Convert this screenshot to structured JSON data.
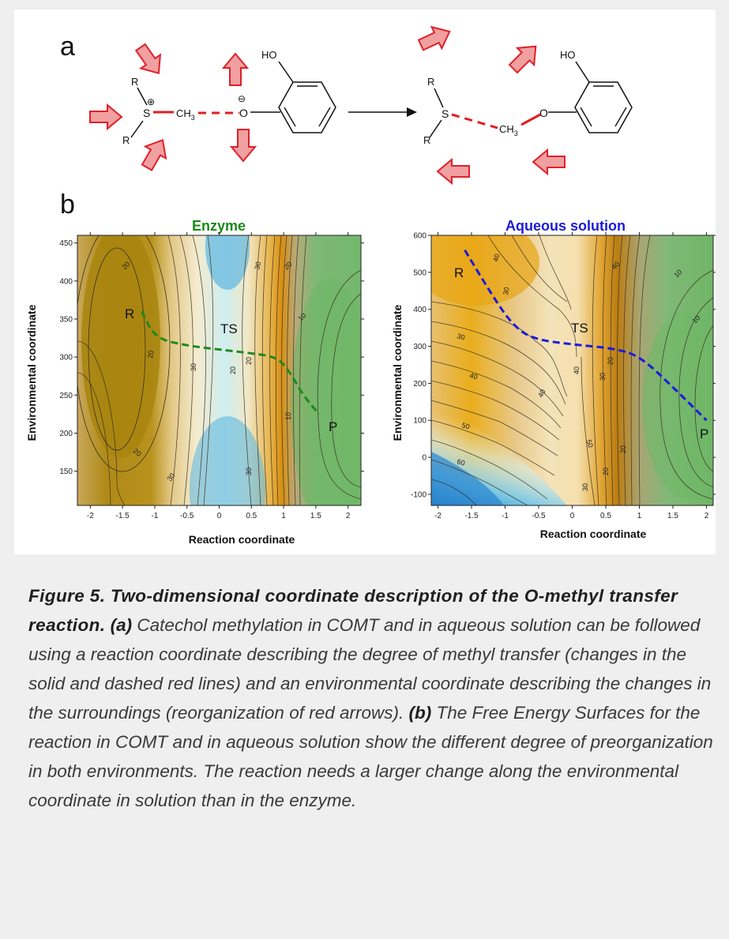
{
  "panel_a": {
    "label": "a",
    "reactant": {
      "R1": "R",
      "R2": "R",
      "S": "S",
      "plus": "⊕",
      "CH3": "CH",
      "CH3_sub": "3",
      "O": "O",
      "minus": "⊖",
      "HO": "HO"
    },
    "product": {
      "R1": "R",
      "R2": "R",
      "S": "S",
      "CH3": "CH",
      "CH3_sub": "3",
      "O": "O",
      "HO": "HO"
    }
  },
  "panel_b": {
    "label": "b"
  },
  "colors": {
    "arrow_fill": "#f0a0a0",
    "arrow_stroke": "#e0202a",
    "bond_red": "#e02020",
    "enzyme_title": "#1a8a1a",
    "aqueous_title": "#1a1adc",
    "path_green": "#1e8a1e",
    "path_blue": "#1a1adc"
  },
  "chart_data": [
    {
      "type": "heatmap",
      "title": "Enzyme",
      "xlabel": "Reaction coordinate",
      "ylabel": "Environmental coordinate",
      "xlim": [
        -2.2,
        2.2
      ],
      "ylim": [
        105,
        460
      ],
      "xticks": [
        "-2",
        "-1.5",
        "-1",
        "-0.5",
        "0",
        "0.5",
        "1",
        "1.5",
        "2"
      ],
      "yticks": [
        "150",
        "200",
        "250",
        "300",
        "350",
        "400",
        "450"
      ],
      "contour_labels": [
        "20",
        "20",
        "20",
        "30",
        "30",
        "20",
        "10",
        "30",
        "20",
        "10",
        "20",
        "30"
      ],
      "annotations": {
        "reactant": "R",
        "transition_state": "TS",
        "product": "P"
      },
      "path": {
        "x": [
          -1.2,
          -1.0,
          -0.5,
          0.0,
          0.5,
          0.9,
          1.1,
          1.3,
          1.55
        ],
        "y": [
          360,
          325,
          315,
          310,
          305,
          300,
          280,
          250,
          225
        ]
      }
    },
    {
      "type": "heatmap",
      "title": "Aqueous solution",
      "xlabel": "Reaction coordinate",
      "ylabel": "Environmental coordinate",
      "xlim": [
        -2.1,
        2.1
      ],
      "ylim": [
        -130,
        600
      ],
      "xticks": [
        "-2",
        "-1.5",
        "-1",
        "-0.5",
        "0",
        "0.5",
        "1",
        "1.5",
        "2"
      ],
      "yticks": [
        "-100",
        "0",
        "100",
        "200",
        "300",
        "400",
        "500",
        "600"
      ],
      "contour_labels": [
        "40",
        "30",
        "30",
        "40",
        "50",
        "60",
        "40",
        "50",
        "40",
        "20",
        "30",
        "20",
        "40",
        "20",
        "10",
        "30",
        "10"
      ],
      "annotations": {
        "reactant": "R",
        "transition_state": "TS",
        "product": "P"
      },
      "path": {
        "x": [
          -1.6,
          -1.2,
          -0.9,
          -0.6,
          0.0,
          0.6,
          1.0,
          1.5,
          2.0
        ],
        "y": [
          560,
          440,
          360,
          320,
          305,
          295,
          275,
          190,
          100
        ]
      }
    }
  ],
  "caption": {
    "head": "Figure 5. Two-dimensional coordinate description of the O-methyl transfer reaction.",
    "tag_a": "(a)",
    "text_a": "Catechol methylation in COMT and in aqueous solution can be followed using a reaction coordinate describing the degree of methyl transfer (changes in the solid and dashed red lines) and an environmental coordinate describing the changes in the surroundings (reorganization of red arrows).",
    "tag_b": "(b)",
    "text_b": "The Free Energy Surfaces for the reaction in COMT and in aqueous solution show the different degree of preorganization in both environments. The reaction needs a larger change along the environmental coordinate in solution than in the enzyme."
  }
}
